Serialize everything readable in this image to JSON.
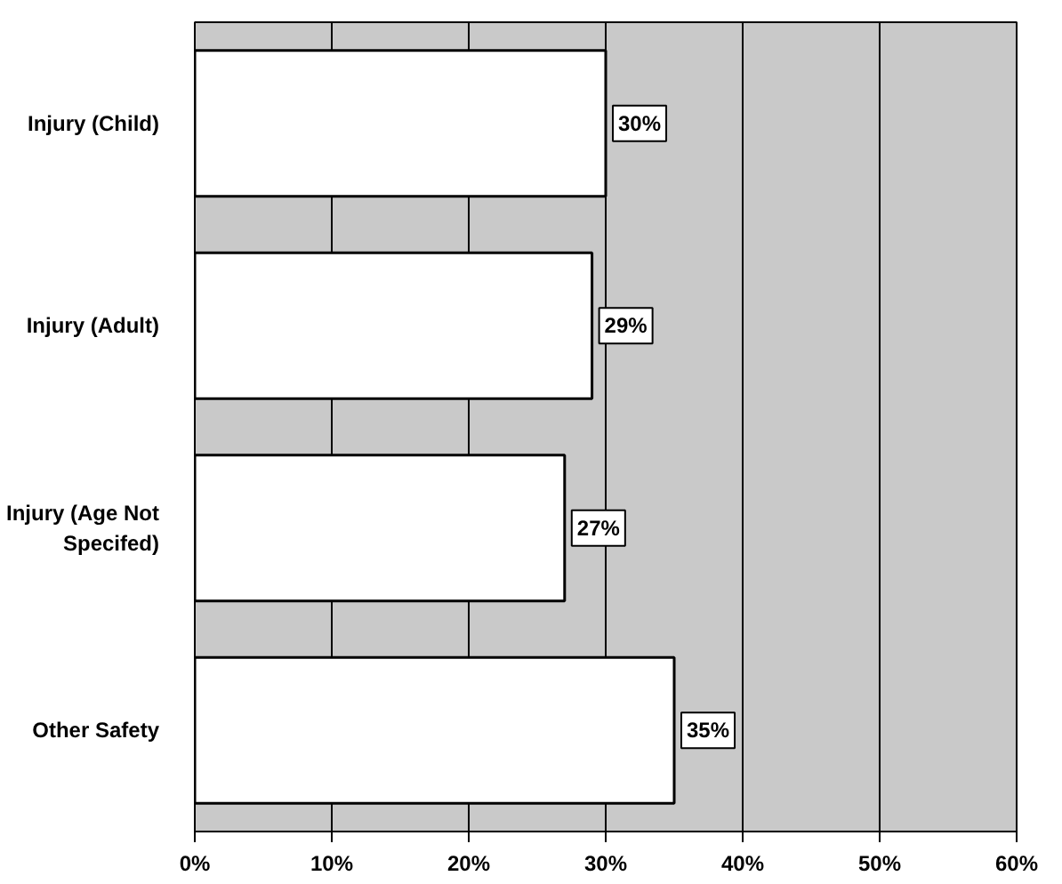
{
  "chart_data": {
    "type": "bar",
    "orientation": "horizontal",
    "categories": [
      "Injury (Child)",
      "Injury (Adult)",
      "Injury (Age Not Specifed)",
      "Other Safety"
    ],
    "values": [
      30,
      29,
      27,
      35
    ],
    "color": "#ffffff",
    "value_labels": [
      "30%",
      "29%",
      "27%",
      "35%"
    ],
    "xlim": [
      0,
      60
    ],
    "xticks": [
      {
        "value": 0,
        "label": "0%"
      },
      {
        "value": 10,
        "label": "10%"
      },
      {
        "value": 20,
        "label": "20%"
      },
      {
        "value": 30,
        "label": "30%"
      },
      {
        "value": 40,
        "label": "40%"
      },
      {
        "value": 50,
        "label": "50%"
      },
      {
        "value": 60,
        "label": "60%"
      }
    ],
    "grid": "x"
  }
}
